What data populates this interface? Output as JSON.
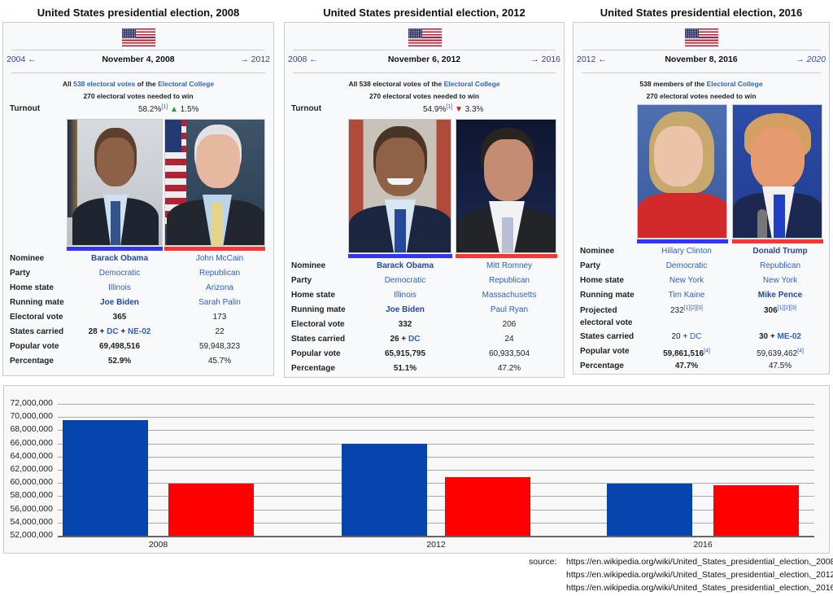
{
  "panels": [
    {
      "title": "United States presidential election, 2008",
      "prev": "2004",
      "prev_arrow": "←",
      "date": "November 4, 2008",
      "next_arrow": "→",
      "next": "2012",
      "info_line1": {
        "pre": "All ",
        "link1": "538 electoral votes",
        "mid": " of the ",
        "link2": "Electoral College"
      },
      "info_line2": "270 electoral votes needed to win",
      "turnout": {
        "label": "Turnout",
        "value": "58.2%",
        "ref": "[1]",
        "arrow": "▲",
        "change": "1.5%"
      },
      "rows": [
        {
          "label": "Nominee",
          "c1": "Barack Obama",
          "c2": "John McCain"
        },
        {
          "label": "Party",
          "c1": "Democratic",
          "c2": "Republican"
        },
        {
          "label": "Home state",
          "c1": "Illinois",
          "c2": "Arizona"
        },
        {
          "label": "Running mate",
          "c1": "Joe Biden",
          "c2": "Sarah Palin"
        },
        {
          "label": "Electoral vote",
          "c1": "365",
          "c2": "173"
        },
        {
          "label": "States carried",
          "c1_pre": "28 + ",
          "c1_link1": "DC",
          "c1_mid": " + ",
          "c1_link2": "NE-02",
          "c2": "22"
        },
        {
          "label": "Popular vote",
          "c1": "69,498,516",
          "c2": "59,948,323"
        },
        {
          "label": "Percentage",
          "c1": "52.9%",
          "c2": "45.7%"
        }
      ]
    },
    {
      "title": "United States presidential election, 2012",
      "prev": "2008",
      "prev_arrow": "←",
      "date": "November 6, 2012",
      "next_arrow": "→",
      "next": "2016",
      "info_line1": {
        "pre": "All 538 electoral votes of the ",
        "link2": "Electoral College"
      },
      "info_line2": "270 electoral votes needed to win",
      "turnout": {
        "label": "Turnout",
        "value": "54.9%",
        "ref": "[1]",
        "arrow": "▼",
        "change": "3.3%"
      },
      "rows": [
        {
          "label": "Nominee",
          "c1": "Barack Obama",
          "c2": "Mitt Romney"
        },
        {
          "label": "Party",
          "c1": "Democratic",
          "c2": "Republican"
        },
        {
          "label": "Home state",
          "c1": "Illinois",
          "c2": "Massachusetts"
        },
        {
          "label": "Running mate",
          "c1": "Joe Biden",
          "c2": "Paul Ryan"
        },
        {
          "label": "Electoral vote",
          "c1": "332",
          "c2": "206"
        },
        {
          "label": "States carried",
          "c1_pre": "26 + ",
          "c1_link1": "DC",
          "c2": "24"
        },
        {
          "label": "Popular vote",
          "c1": "65,915,795",
          "c2": "60,933,504"
        },
        {
          "label": "Percentage",
          "c1": "51.1%",
          "c2": "47.2%"
        }
      ]
    },
    {
      "title": "United States presidential election, 2016",
      "prev": "2012",
      "prev_arrow": "←",
      "date": "November 8, 2016",
      "next_arrow": "→",
      "next": "2020",
      "info_line1": {
        "pre": "538 members of the ",
        "link2": "Electoral College"
      },
      "info_line2": "270 electoral votes needed to win",
      "rows": [
        {
          "label": "Nominee",
          "c1": "Hillary Clinton",
          "c2": "Donald Trump"
        },
        {
          "label": "Party",
          "c1": "Democratic",
          "c2": "Republican"
        },
        {
          "label": "Home state",
          "c1": "New York",
          "c2": "New York"
        },
        {
          "label": "Running mate",
          "c1": "Tim Kaine",
          "c2": "Mike Pence"
        },
        {
          "label": "Projected",
          "label2": "electoral vote",
          "c1": "232",
          "c1_ref": "[1][2][3]",
          "c2": "306",
          "c2_ref": "[1][2][3]"
        },
        {
          "label": "States carried",
          "c1_pre": "20 + ",
          "c1_link1": "DC",
          "c2_pre": "30 + ",
          "c2_link1": "ME-02"
        },
        {
          "label": "Popular vote",
          "c1": "59,861,516",
          "c1_ref": "[4]",
          "c2": "59,639,462",
          "c2_ref": "[4]"
        },
        {
          "label": "Percentage",
          "c1": "47.7%",
          "c2": "47.5%"
        }
      ]
    }
  ],
  "chart_data": {
    "type": "bar",
    "title": "",
    "xlabel": "",
    "ylabel": "",
    "categories": [
      "2008",
      "2012",
      "2016"
    ],
    "series": [
      {
        "name": "Democratic",
        "color": "#0645ad",
        "values": [
          69498516,
          65915795,
          59861516
        ]
      },
      {
        "name": "Republican",
        "color": "#ff0000",
        "values": [
          59948323,
          60933504,
          59639462
        ]
      }
    ],
    "ylim": [
      52000000,
      72000000
    ],
    "yticks": [
      "72,000,000",
      "70,000,000",
      "68,000,000",
      "66,000,000",
      "64,000,000",
      "62,000,000",
      "60,000,000",
      "58,000,000",
      "56,000,000",
      "54,000,000",
      "52,000,000"
    ],
    "grid": true,
    "legend": "none"
  },
  "source": {
    "label": "source:",
    "urls": [
      "https://en.wikipedia.org/wiki/United_States_presidential_election,_2008",
      "https://en.wikipedia.org/wiki/United_States_presidential_election,_2012",
      "https://en.wikipedia.org/wiki/United_States_presidential_election,_2016"
    ]
  },
  "colors": {
    "democratic": "#3333ff",
    "republican": "#ff3333",
    "link": "#2e5fce"
  }
}
